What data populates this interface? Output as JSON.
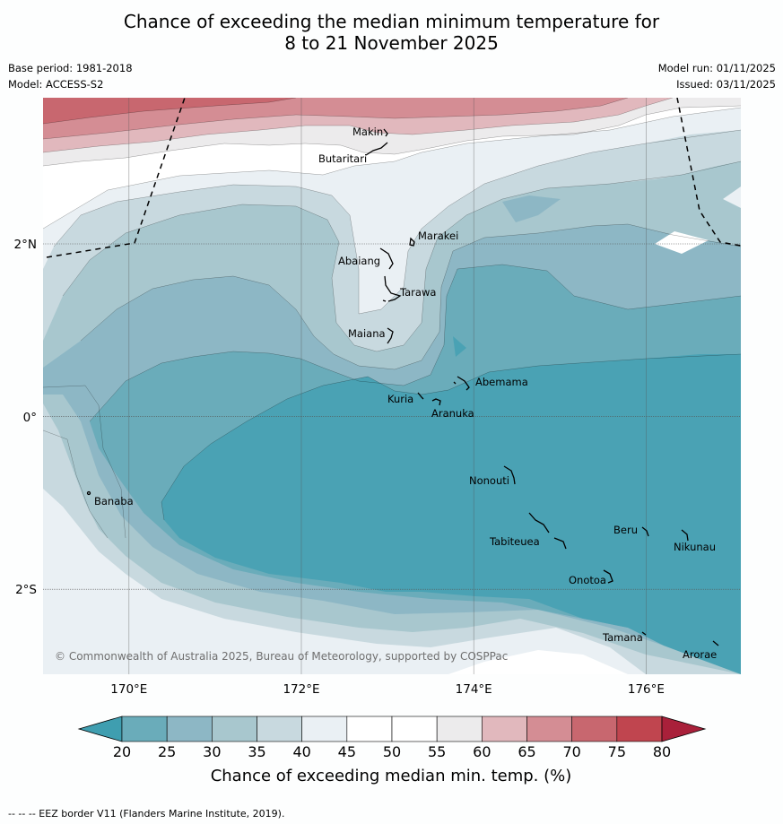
{
  "title": {
    "line1": "Chance of exceeding the median minimum temperature for",
    "line2": "8 to 21 November 2025"
  },
  "meta": {
    "base_period": "Base period: 1981-2018",
    "model": "Model: ACCESS-S2",
    "model_run": "Model run: 01/11/2025",
    "issued": "Issued: 03/11/2025"
  },
  "map": {
    "lat_labels": [
      "2°N",
      "0°",
      "2°S"
    ],
    "lon_labels": [
      "170°E",
      "172°E",
      "174°E",
      "176°E"
    ],
    "places": [
      "Makin",
      "Butaritari",
      "Marakei",
      "Abaiang",
      "Tarawa",
      "Maiana",
      "Abemama",
      "Kuria",
      "Aranuka",
      "Banaba",
      "Nonouti",
      "Beru",
      "Tabiteuea",
      "Nikunau",
      "Onotoa",
      "Tamana",
      "Arorae"
    ],
    "copyright": "© Commonwealth of Australia 2025, Bureau of Meteorology, supported by COSPPac"
  },
  "colorbar": {
    "ticks": [
      "20",
      "25",
      "30",
      "35",
      "40",
      "45",
      "50",
      "55",
      "60",
      "65",
      "70",
      "75",
      "80"
    ],
    "colors": [
      "#3f9eb0",
      "#6aacba",
      "#8db7c5",
      "#a8c7ce",
      "#c8d9df",
      "#eaf0f4",
      "#ffffff",
      "#ffffff",
      "#ecebec",
      "#e1b8bd",
      "#d48d94",
      "#c8676f",
      "#c0454f",
      "#a9203a"
    ],
    "label": "Chance of exceeding median min. temp. (%)"
  },
  "footer": {
    "legend": "--  --  -- EEZ border V11 (Flanders Marine Institute, 2019)."
  }
}
